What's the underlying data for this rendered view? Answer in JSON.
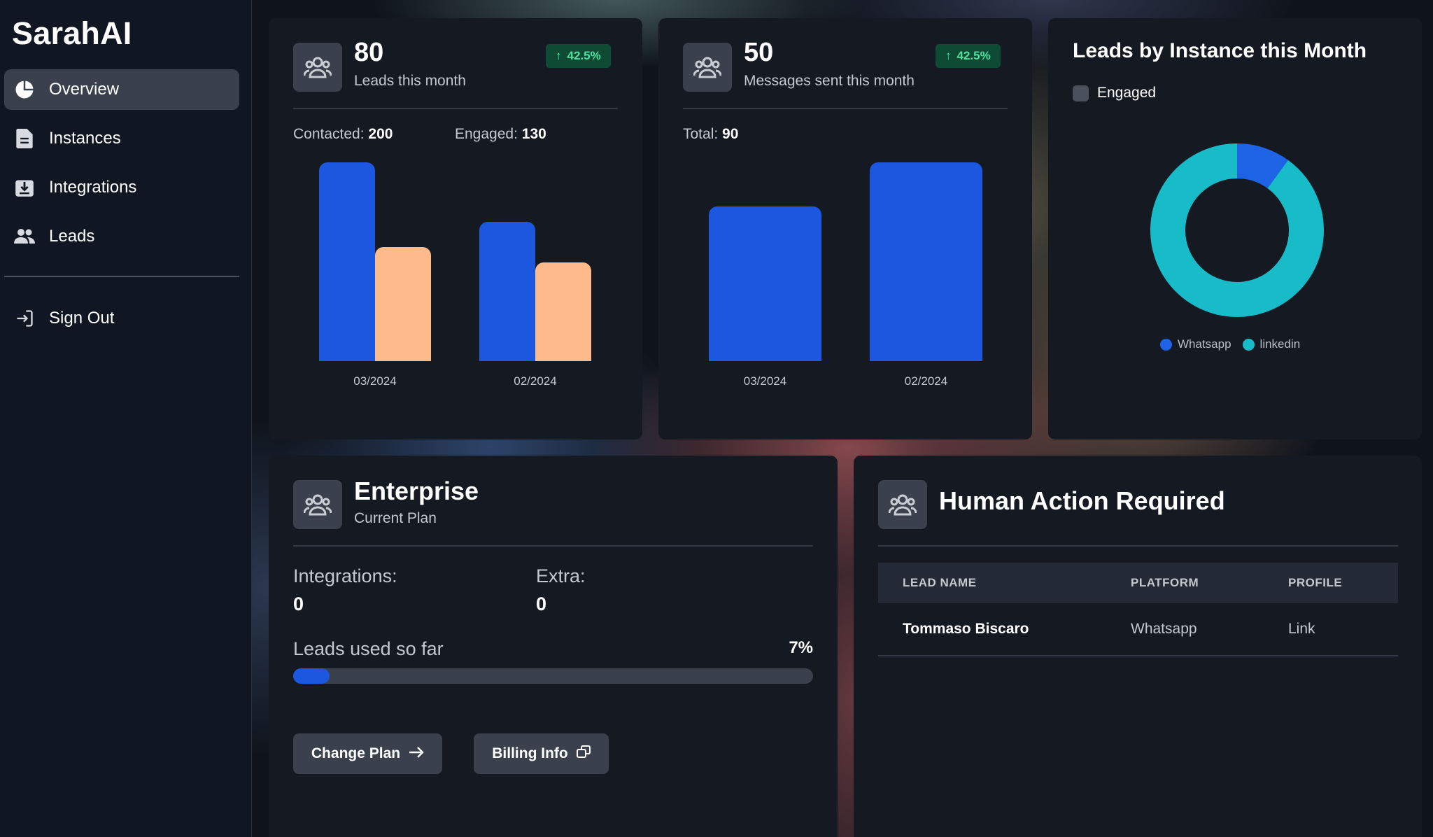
{
  "app": {
    "brand": "SarahAI"
  },
  "sidebar": {
    "items": [
      {
        "label": "Overview",
        "icon": "pie-chart-icon",
        "active": true
      },
      {
        "label": "Instances",
        "icon": "document-icon",
        "active": false
      },
      {
        "label": "Integrations",
        "icon": "download-box-icon",
        "active": false
      },
      {
        "label": "Leads",
        "icon": "users-icon",
        "active": false
      }
    ],
    "sign_out": {
      "label": "Sign Out",
      "icon": "sign-in-arrow-icon"
    }
  },
  "leads_card": {
    "value": "80",
    "label": "Leads this month",
    "badge": "42.5%",
    "contacted_label": "Contacted:",
    "contacted_value": "200",
    "engaged_label": "Engaged:",
    "engaged_value": "130",
    "categories": [
      "03/2024",
      "02/2024"
    ]
  },
  "messages_card": {
    "value": "50",
    "label": "Messages sent this month",
    "badge": "42.5%",
    "total_label": "Total:",
    "total_value": "90",
    "categories": [
      "03/2024",
      "02/2024"
    ]
  },
  "instances_card": {
    "title": "Leads by Instance this Month",
    "checkbox_label": "Engaged",
    "checkbox_checked": false,
    "legend": [
      {
        "name": "Whatsapp",
        "color": "#1e62e6"
      },
      {
        "name": "linkedin",
        "color": "#17bcc8"
      }
    ]
  },
  "plan_card": {
    "title": "Enterprise",
    "subtitle": "Current Plan",
    "integrations_label": "Integrations:",
    "integrations_value": "0",
    "extra_label": "Extra:",
    "extra_value": "0",
    "usage_label": "Leads used so far",
    "usage_value": "7%",
    "usage_fraction": 0.07,
    "change_plan_label": "Change Plan",
    "billing_label": "Billing Info"
  },
  "action_card": {
    "title": "Human Action Required",
    "columns": [
      "LEAD NAME",
      "PLATFORM",
      "PROFILE"
    ],
    "rows": [
      {
        "name": "Tommaso Biscaro",
        "platform": "Whatsapp",
        "profile": "Link"
      }
    ]
  },
  "colors": {
    "accent_blue": "#1c57df",
    "peach": "#fdbb8b",
    "badge_green": "#4fe2a1",
    "teal": "#17bcc8"
  },
  "chart_data": [
    {
      "type": "bar",
      "categories": [
        "03/2024",
        "02/2024"
      ],
      "series": [
        {
          "values": [
            200,
            140
          ]
        },
        {
          "values": [
            115,
            99
          ]
        }
      ],
      "ylim": [
        0,
        200
      ]
    },
    {
      "type": "bar",
      "categories": [
        "03/2024",
        "02/2024"
      ],
      "series": [
        {
          "values": [
            70,
            90
          ]
        }
      ],
      "ylim": [
        0,
        90
      ]
    },
    {
      "type": "pie",
      "categories": [
        "Whatsapp",
        "linkedin"
      ],
      "values": [
        10,
        90
      ],
      "donut": true
    }
  ]
}
